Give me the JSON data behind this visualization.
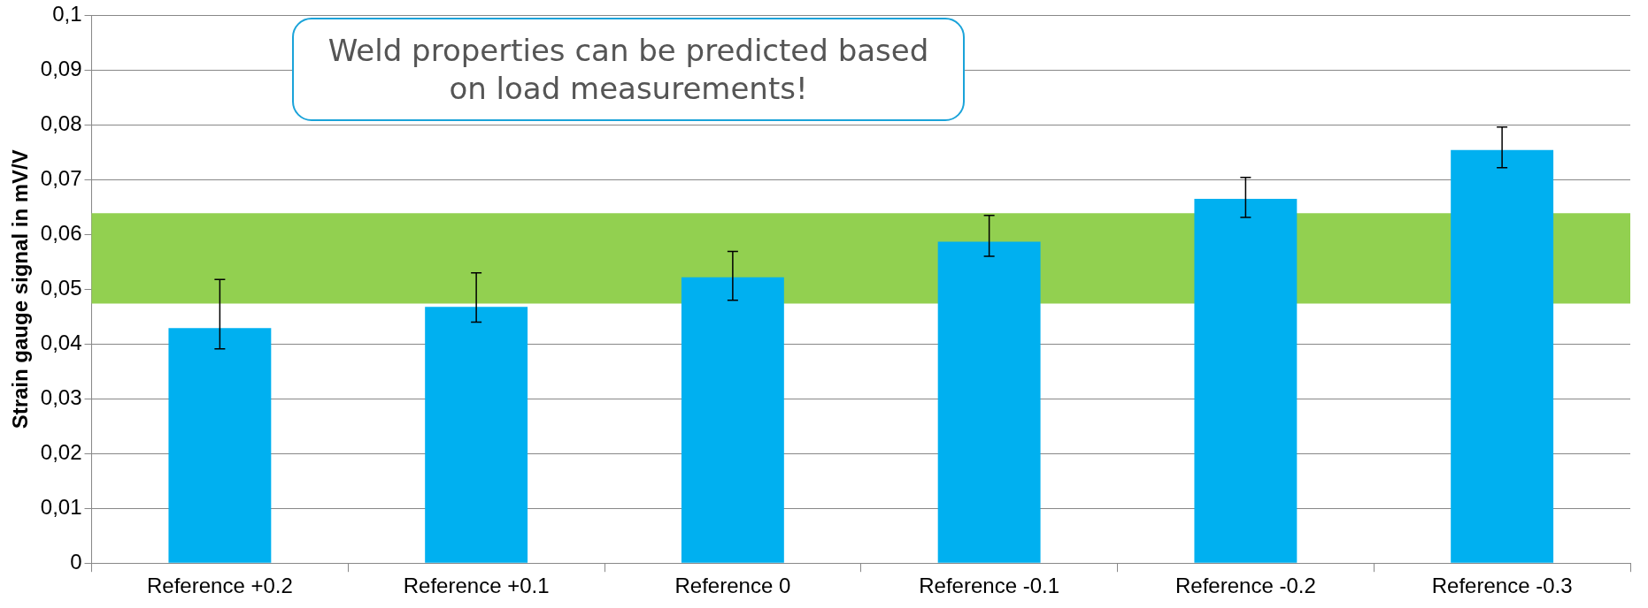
{
  "chart_data": {
    "type": "bar",
    "ylabel": "Strain gauge signal in mV/V",
    "categories": [
      "Reference +0.2",
      "Reference +0.1",
      "Reference 0",
      "Reference -0.1",
      "Reference -0.2",
      "Reference -0.3"
    ],
    "values": [
      0.0429,
      0.0468,
      0.0522,
      0.0587,
      0.0665,
      0.0754
    ],
    "errors": [
      [
        0.0391,
        0.0518
      ],
      [
        0.044,
        0.053
      ],
      [
        0.048,
        0.0569
      ],
      [
        0.056,
        0.0635
      ],
      [
        0.0631,
        0.0704
      ],
      [
        0.0722,
        0.0796
      ]
    ],
    "color": "#00b0f0",
    "ylim": [
      0,
      0.1
    ],
    "yticks": [
      0,
      {
        "value": 0.01,
        "label": "0,01"
      },
      {
        "value": 0.02,
        "label": "0,02"
      },
      {
        "value": 0.03,
        "label": "0,03"
      },
      {
        "value": 0.04,
        "label": "0,04"
      },
      {
        "value": 0.05,
        "label": "0,05"
      },
      {
        "value": 0.06,
        "label": "0,06"
      },
      {
        "value": 0.07,
        "label": "0,07"
      },
      {
        "value": 0.08,
        "label": "0,08"
      },
      {
        "value": 0.09,
        "label": "0,09"
      },
      {
        "value": 0.1,
        "label": "0,1"
      }
    ],
    "bands": [
      {
        "axis": "y",
        "from": 0.0474,
        "to": 0.0639,
        "color": "#92d050"
      }
    ],
    "annotations": [
      "Weld properties can be predicted based on load measurements!"
    ],
    "grid": "y",
    "legend": false
  }
}
